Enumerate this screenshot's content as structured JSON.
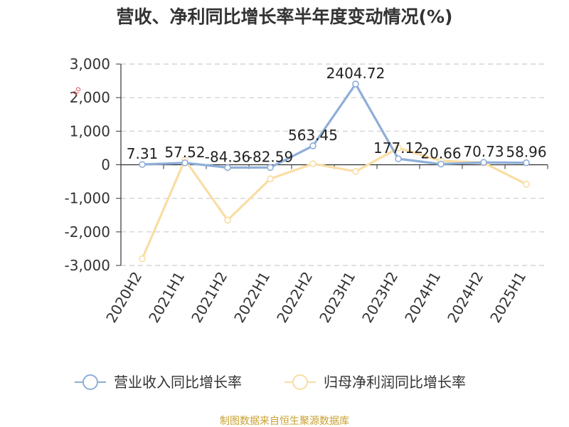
{
  "title": "营收、净利同比增长率半年度变动情况(%)",
  "source": "制图数据来自恒生聚源数据库",
  "watermark": "ko",
  "chart_data": {
    "type": "line",
    "categories": [
      "2020H2",
      "2021H1",
      "2021H2",
      "2022H1",
      "2022H2",
      "2023H1",
      "2023H2",
      "2024H1",
      "2024H2",
      "2025H1"
    ],
    "ylim": [
      -3000,
      3000
    ],
    "yticks": [
      3000,
      2000,
      1000,
      0,
      -1000,
      -2000,
      -3000
    ],
    "ytick_labels": [
      "3,000",
      "2,000",
      "1,000",
      "0",
      "-1,000",
      "-2,000",
      "-3,000"
    ],
    "grid": true,
    "legend_position": "bottom",
    "series": [
      {
        "name": "营业收入同比增长率",
        "color": "#8eaed8",
        "values": [
          7.31,
          57.52,
          -84.36,
          -82.59,
          563.45,
          2404.72,
          177.12,
          20.66,
          70.73,
          58.96
        ],
        "labels": [
          "7.31",
          "57.52",
          "-84.36",
          "-82.59",
          "563.45",
          "2404.72",
          "177.12",
          "20.66",
          "70.73",
          "58.96"
        ]
      },
      {
        "name": "归母净利润同比增长率",
        "color": "#f9dda4",
        "values": [
          -2800,
          150,
          -1650,
          -420,
          30,
          -200,
          500,
          120,
          60,
          -580
        ]
      }
    ]
  }
}
